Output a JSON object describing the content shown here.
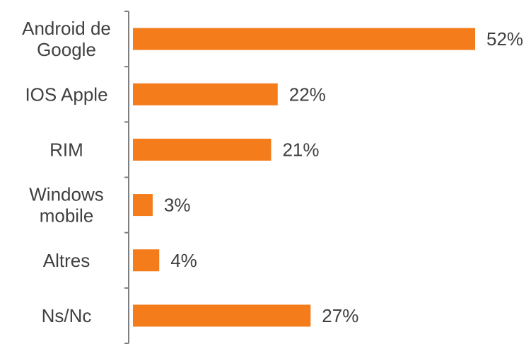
{
  "chart_data": {
    "type": "bar",
    "orientation": "horizontal",
    "categories": [
      [
        "Android de",
        "Google"
      ],
      [
        "IOS Apple"
      ],
      [
        "RIM"
      ],
      [
        "Windows",
        "mobile"
      ],
      [
        "Altres"
      ],
      [
        "Ns/Nc"
      ]
    ],
    "values": [
      52,
      22,
      21,
      3,
      4,
      27
    ],
    "value_labels": [
      "52%",
      "22%",
      "21%",
      "3%",
      "4%",
      "27%"
    ],
    "value_unit": "%",
    "xlim": [
      0,
      55
    ],
    "bar_color": "#f47c1a",
    "label_color": "#404040",
    "axis_color": "#7f7f7f",
    "grid": false,
    "legend": "none"
  }
}
